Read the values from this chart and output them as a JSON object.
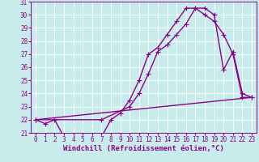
{
  "xlabel": "Windchill (Refroidissement éolien,°C)",
  "ylabel": "",
  "xlim": [
    -0.5,
    23.5
  ],
  "ylim": [
    21,
    31
  ],
  "yticks": [
    21,
    22,
    23,
    24,
    25,
    26,
    27,
    28,
    29,
    30,
    31
  ],
  "xticks": [
    0,
    1,
    2,
    3,
    4,
    5,
    6,
    7,
    8,
    9,
    10,
    11,
    12,
    13,
    14,
    15,
    16,
    17,
    18,
    19,
    20,
    21,
    22,
    23
  ],
  "bg_color": "#c8ecec",
  "grid_color": "#ffffff",
  "line_color": "#8b008b",
  "lines": [
    {
      "x": [
        0,
        1,
        2,
        3,
        4,
        5,
        6,
        7,
        8,
        9,
        10,
        11,
        12,
        13,
        14,
        15,
        16,
        17,
        18,
        19,
        20,
        21,
        22,
        23
      ],
      "y": [
        22.0,
        21.7,
        22.0,
        20.7,
        20.7,
        20.7,
        20.7,
        20.7,
        22.0,
        22.5,
        23.5,
        25.0,
        27.0,
        27.5,
        28.5,
        29.5,
        30.5,
        30.5,
        30.0,
        29.5,
        28.5,
        27.0,
        23.7,
        23.7
      ],
      "has_markers": true
    },
    {
      "x": [
        0,
        7,
        10,
        11,
        12,
        13,
        14,
        15,
        16,
        17,
        18,
        19,
        20,
        21,
        22,
        23
      ],
      "y": [
        22.0,
        22.0,
        23.0,
        24.0,
        25.5,
        27.2,
        27.7,
        28.5,
        29.3,
        30.5,
        30.5,
        30.0,
        25.8,
        27.2,
        24.0,
        23.7
      ],
      "has_markers": true
    },
    {
      "x": [
        0,
        23
      ],
      "y": [
        22.0,
        23.7
      ],
      "has_markers": false
    }
  ],
  "marker": "+",
  "markersize": 4,
  "linewidth": 1.0,
  "tick_fontsize": 5.5,
  "label_fontsize": 6.5
}
